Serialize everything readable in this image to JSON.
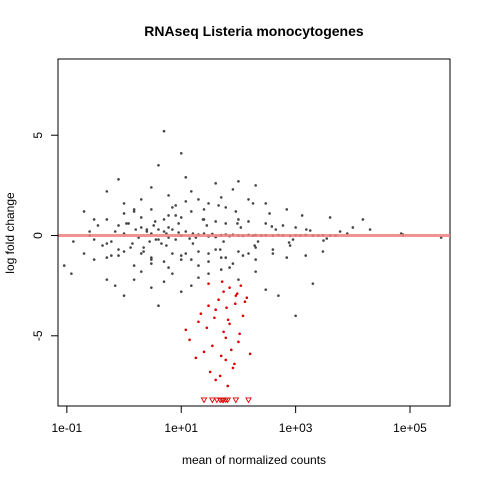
{
  "chart_data": {
    "type": "scatter",
    "title": "RNAseq Listeria monocytogenes",
    "xlabel": "mean of normalized counts",
    "ylabel": "log fold change",
    "x_scale": "log10",
    "xlim": [
      0.07,
      500000
    ],
    "ylim": [
      -8.5,
      8.8
    ],
    "x_ticks": [
      {
        "value": 0.1,
        "label": "1e-01"
      },
      {
        "value": 10,
        "label": "1e+01"
      },
      {
        "value": 1000,
        "label": "1e+03"
      },
      {
        "value": 100000,
        "label": "1e+05"
      }
    ],
    "y_ticks": [
      {
        "value": -5,
        "label": "-5"
      },
      {
        "value": 0,
        "label": "0"
      },
      {
        "value": 5,
        "label": "5"
      }
    ],
    "reference_line": {
      "y": 0,
      "color": "#f08080"
    },
    "colors": {
      "non_significant": "#444444",
      "significant": "#dd0000"
    },
    "series": [
      {
        "x": [
          0.09,
          0.12,
          0.2,
          0.25,
          0.3,
          0.35,
          0.42,
          0.5,
          0.6,
          0.7,
          0.8,
          1.0,
          1.2,
          1.4,
          1.6,
          1.8,
          2.0,
          2.2,
          2.5,
          2.8,
          3.0,
          3.3,
          3.6,
          4.0,
          4.5,
          5.0,
          5.5,
          6.0,
          7.0,
          8.0,
          9.0,
          10,
          12,
          14,
          16,
          18,
          20,
          25,
          30,
          35,
          40,
          50,
          60,
          70,
          80,
          100,
          120,
          150,
          180,
          200,
          250,
          300,
          400,
          500,
          600,
          800,
          1000,
          1200,
          1500,
          2000,
          2500,
          3000,
          4000,
          5000,
          0.3,
          0.5,
          0.8,
          1.0,
          1.5,
          2.0,
          3.0,
          4.0,
          5.0,
          6.0,
          8.0,
          10,
          12,
          15,
          20,
          30,
          40,
          50,
          60,
          80,
          100,
          150,
          200,
          300,
          0.5,
          0.7,
          1.0,
          1.5,
          2.0,
          3.0,
          4.0,
          5.0,
          7.0,
          10,
          15,
          20,
          30,
          50,
          70,
          100,
          200,
          300,
          500,
          1000,
          2000,
          0.2,
          0.3,
          0.5,
          0.8,
          1.0,
          1.5,
          2.0,
          3.0,
          5.0,
          7.0,
          10,
          15,
          20,
          30,
          40,
          60,
          100,
          150,
          200,
          400,
          800,
          1.0,
          2.0,
          3.0,
          5.0,
          8.0,
          10,
          15,
          25,
          40,
          60,
          100,
          150,
          300,
          600,
          1000,
          3,
          6,
          10,
          20,
          30,
          50,
          80,
          120,
          200,
          400,
          700,
          1500,
          3000,
          7,
          12,
          25,
          45,
          90,
          180,
          350,
          700,
          1300,
          4000,
          10000,
          20000,
          15000,
          70000,
          75000,
          350000,
          0.13,
          0.25,
          0.5,
          0.8,
          1.3,
          2.5,
          4.0,
          6.0,
          0.6,
          1.1,
          2.2,
          3.5,
          5.5,
          9,
          16,
          28,
          55,
          110,
          220,
          450,
          900,
          1800,
          3500,
          8000,
          1.5,
          3.0,
          6.0,
          12,
          24,
          48,
          96,
          192,
          384,
          768,
          1536,
          3072,
          6000
        ],
        "y": [
          -1.5,
          -1.9,
          1.2,
          0.0,
          -0.2,
          0.5,
          -0.5,
          0.8,
          -0.3,
          0.2,
          -0.7,
          0.1,
          0.6,
          -0.4,
          0.3,
          -0.1,
          0.4,
          -0.6,
          0.2,
          -0.3,
          0.1,
          0.5,
          -0.2,
          0.3,
          -0.4,
          0.2,
          0.1,
          -0.1,
          0.3,
          -0.2,
          0.15,
          0.0,
          0.2,
          -0.15,
          0.1,
          -0.1,
          0.05,
          0.1,
          -0.05,
          0.08,
          -0.08,
          0.02,
          0.05,
          -0.03,
          0.04,
          0.0,
          -0.02,
          0.03,
          -0.01,
          0.02,
          0.0,
          0.01,
          -0.01,
          0.02,
          0.0,
          -0.02,
          0.01,
          0.0,
          0.02,
          -0.01,
          0.0,
          0.01,
          0.0,
          -0.01,
          0.8,
          2.2,
          2.8,
          1.6,
          1.2,
          1.8,
          2.4,
          3.5,
          5.2,
          2.0,
          1.5,
          4.1,
          2.9,
          2.2,
          1.8,
          1.6,
          2.6,
          1.9,
          1.4,
          2.3,
          2.7,
          1.8,
          2.5,
          1.6,
          -2.2,
          -2.5,
          -3.0,
          -2.2,
          -1.8,
          -2.6,
          -3.5,
          -2.3,
          -1.9,
          -2.8,
          -2.5,
          -2.1,
          -1.9,
          -1.7,
          -1.6,
          -2.2,
          -1.8,
          -2.7,
          -3.0,
          -4.0,
          -2.4,
          -0.9,
          -1.2,
          -1.1,
          -1.0,
          -0.8,
          -1.5,
          -0.9,
          -1.1,
          -1.3,
          -0.9,
          -1.0,
          -1.2,
          -0.8,
          -0.9,
          -0.7,
          -1.1,
          -0.8,
          -0.9,
          -0.6,
          -0.7,
          -0.5,
          1.1,
          0.9,
          1.3,
          0.8,
          1.0,
          0.9,
          1.2,
          0.8,
          0.7,
          0.6,
          0.8,
          0.7,
          0.6,
          0.5,
          0.4,
          -1.4,
          -1.6,
          -1.2,
          -1.5,
          -1.3,
          -1.1,
          -1.4,
          -1.0,
          -1.2,
          -0.9,
          -1.1,
          -1.0,
          -0.8,
          1.4,
          1.7,
          1.3,
          1.5,
          1.2,
          1.6,
          1.1,
          1.3,
          1.0,
          0.9,
          0.4,
          0.3,
          0.8,
          0.1,
          0.05,
          -0.1,
          -0.3,
          0.2,
          -0.4,
          0.5,
          -0.6,
          0.3,
          -0.2,
          0.4,
          -1.0,
          0.6,
          -0.8,
          0.7,
          -0.5,
          0.6,
          -0.4,
          0.5,
          -0.3,
          0.4,
          -0.3,
          0.3,
          -0.2,
          0.25,
          -0.15,
          0.1,
          1.3,
          -1.2,
          1.0,
          -0.9,
          0.8,
          -0.7,
          0.6,
          -0.5,
          0.45,
          -0.35,
          0.3,
          -0.25,
          0.2
        ]
      },
      {
        "name": "",
        "x": [
          12,
          14,
          18,
          20,
          22,
          25,
          28,
          30,
          32,
          35,
          38,
          40,
          45,
          50,
          55,
          60,
          65,
          70,
          80,
          90,
          100,
          110,
          120,
          60,
          40,
          75,
          95,
          130,
          55,
          85,
          48,
          62,
          70,
          105,
          140,
          160,
          52,
          66,
          88,
          30
        ],
        "y": [
          -4.7,
          -5.2,
          -6.1,
          -4.3,
          -3.9,
          -5.8,
          -4.6,
          -3.5,
          -6.8,
          -5.5,
          -4.1,
          -7.2,
          -3.2,
          -6.0,
          -2.8,
          -5.1,
          -7.5,
          -4.4,
          -6.6,
          -3.0,
          -5.3,
          -2.5,
          -4.0,
          -6.2,
          -3.7,
          -5.7,
          -2.9,
          -3.3,
          -4.8,
          -6.4,
          -7.0,
          -3.6,
          -2.6,
          -4.9,
          -3.1,
          -5.9,
          -2.3,
          -4.2,
          -3.4,
          -2.4
        ],
        "color": "#dd0000",
        "marker": "point"
      },
      {
        "name": "",
        "x": [
          25,
          35,
          42,
          48,
          52,
          55,
          60,
          65,
          90,
          150
        ],
        "y": [
          -8.2,
          -8.2,
          -8.2,
          -8.2,
          -8.2,
          -8.2,
          -8.2,
          -8.2,
          -8.2,
          -8.2
        ],
        "color": "#dd0000",
        "marker": "open-triangle-down"
      }
    ]
  }
}
